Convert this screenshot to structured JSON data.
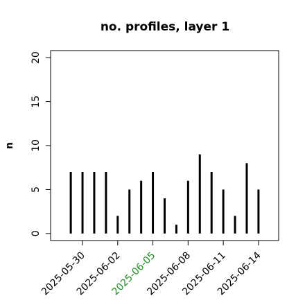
{
  "chart_data": {
    "type": "histogram-lines",
    "title": "no. profiles, layer 1",
    "y_label": "n",
    "x": [
      "2025-05-29",
      "2025-05-30",
      "2025-05-31",
      "2025-06-01",
      "2025-06-02",
      "2025-06-03",
      "2025-06-04",
      "2025-06-05",
      "2025-06-06",
      "2025-06-07",
      "2025-06-08",
      "2025-06-09",
      "2025-06-10",
      "2025-06-11",
      "2025-06-12",
      "2025-06-13",
      "2025-06-14"
    ],
    "values": [
      7,
      7,
      7,
      7,
      2,
      5,
      6,
      7,
      4,
      1,
      6,
      9,
      7,
      5,
      2,
      8,
      5
    ],
    "color": "#000000",
    "xlim": [
      "2025-05-28",
      "2025-06-15"
    ],
    "ylim": [
      0,
      20
    ],
    "xticks": [
      "2025-05-30",
      "2025-06-02",
      "2025-06-05",
      "2025-06-08",
      "2025-06-11",
      "2025-06-14"
    ],
    "xtick_colors": [
      "#000000",
      "#000000",
      "#228b22",
      "#000000",
      "#000000",
      "#000000"
    ],
    "yticks": [
      0,
      5,
      10,
      15,
      20
    ]
  }
}
